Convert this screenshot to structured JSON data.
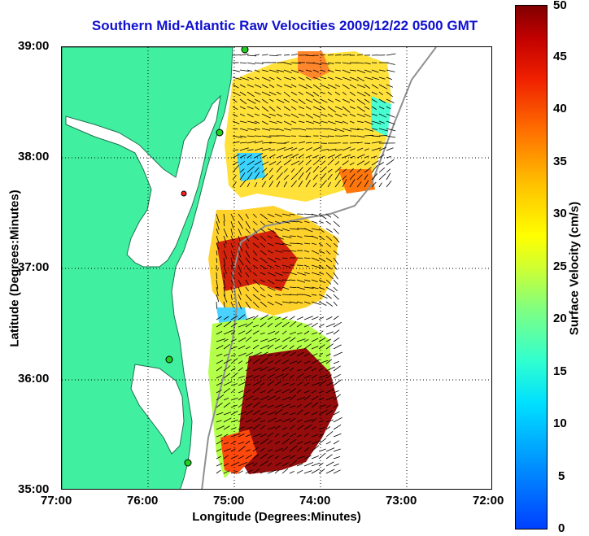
{
  "title": "Southern Mid-Atlantic Raw Velocities 2009/12/22 0500 GMT",
  "xlabel": "Longitude (Degrees:Minutes)",
  "ylabel": "Latitude (Degrees:Minutes)",
  "x_ticks": [
    "77:00",
    "76:00",
    "75:00",
    "74:00",
    "73:00",
    "72:00"
  ],
  "y_ticks": [
    "39:00",
    "38:00",
    "37:00",
    "36:00",
    "35:00"
  ],
  "colorbar": {
    "label": "Surface Velocity (cm/s)",
    "ticks": [
      "50",
      "45",
      "40",
      "35",
      "30",
      "25",
      "20",
      "15",
      "10",
      "5",
      "0"
    ],
    "range": [
      0,
      50
    ]
  },
  "colors": {
    "land": "#40f0a0",
    "title": "#1010d0",
    "station": "#20d020",
    "station_alt": "#ff2020"
  }
}
